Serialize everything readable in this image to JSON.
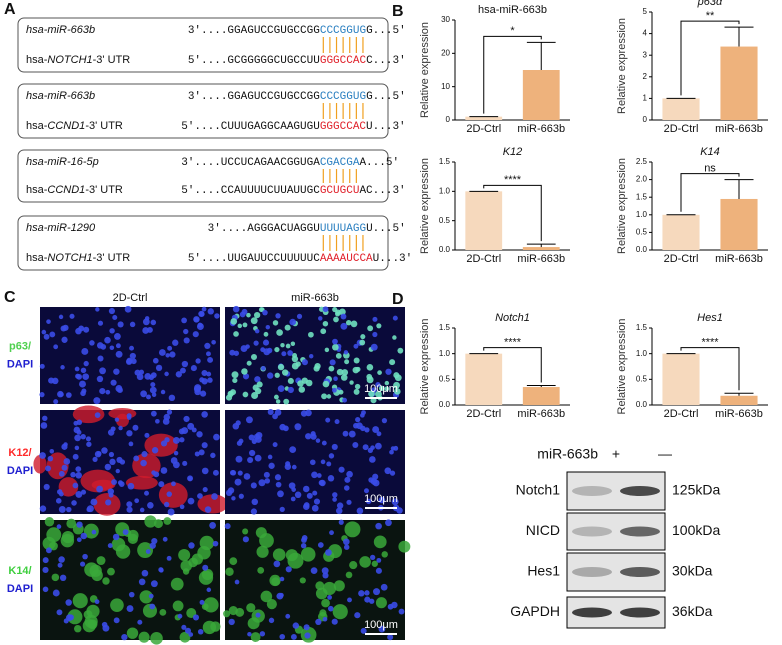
{
  "panels": [
    "A",
    "B",
    "C",
    "D"
  ],
  "targets": [
    {
      "mir": "hsa-miR-663b",
      "mir_seq": [
        "3'....GGAGUCCGUGCCGG",
        "CCCGGUG",
        "G...5'"
      ],
      "target": {
        "pre": "hsa-",
        "gene": "NOTCH1",
        "post": "-3' UTR"
      },
      "target_seq": [
        "5'....GCGGGGGCUGCCUU",
        "GGGCCAC",
        "C...3'"
      ]
    },
    {
      "mir": "hsa-miR-663b",
      "mir_seq": [
        "3'....GGAGUCCGUGCCGG",
        "CCCGGUG",
        "G...5'"
      ],
      "target": {
        "pre": "hsa-",
        "gene": "CCND1",
        "post": "-3' UTR"
      },
      "target_seq": [
        "5'....CUUUGAGGCAAGUGU",
        "GGGCCAC",
        "U...3'"
      ]
    },
    {
      "mir": "hsa-miR-16-5p",
      "mir_seq": [
        "3'....UCCUCAGAACGGUGA",
        "CGACGA",
        "A...5'"
      ],
      "target": {
        "pre": "hsa-",
        "gene": "CCND1",
        "post": "-3' UTR"
      },
      "target_seq": [
        "5'....CCAUUUUCUUAUUGC",
        "GCUGCU",
        "AC...3'"
      ]
    },
    {
      "mir": "hsa-miR-1290",
      "mir_seq": [
        "3'....AGGGACUAGGU",
        "UUUUAGG",
        "U...5'"
      ],
      "target": {
        "pre": "hsa-",
        "gene": "NOTCH1",
        "post": "-3' UTR"
      },
      "target_seq": [
        "5'....UUGAUUCCUUUUUC",
        "AAAAUCCA",
        "U...3'"
      ]
    }
  ],
  "chart_data": [
    {
      "type": "bar",
      "title": "hsa-miR-663b",
      "title_style": "normal",
      "y_label": "Relative expression",
      "categories": [
        "2D-Ctrl",
        "miR-663b"
      ],
      "values": [
        1,
        15
      ],
      "errors": [
        0,
        8.3
      ],
      "colors": [
        "#f6d9bd",
        "#eeb27c"
      ],
      "ylim": [
        0,
        30
      ],
      "yticks": [
        0,
        10,
        20,
        30
      ],
      "significance": "*"
    },
    {
      "type": "bar",
      "title": "p63α",
      "title_style": "italic",
      "y_label": "Relative expression",
      "categories": [
        "2D-Ctrl",
        "miR-663b"
      ],
      "values": [
        1,
        3.4
      ],
      "errors": [
        0,
        0.9
      ],
      "colors": [
        "#f6d9bd",
        "#eeb27c"
      ],
      "ylim": [
        0,
        5
      ],
      "yticks": [
        0,
        1,
        2,
        3,
        4,
        5
      ],
      "significance": "**"
    },
    {
      "type": "bar",
      "title": "K12",
      "title_style": "italic",
      "y_label": "Relative expression",
      "categories": [
        "2D-Ctrl",
        "miR-663b"
      ],
      "values": [
        1,
        0.05
      ],
      "errors": [
        0,
        0.05
      ],
      "colors": [
        "#f6d9bd",
        "#eeb27c"
      ],
      "ylim": [
        0,
        1.5
      ],
      "yticks": [
        {
          "value": 0,
          "label": "0.0"
        },
        0.5,
        {
          "value": 1,
          "label": "1.0"
        },
        1.5
      ],
      "significance": "****"
    },
    {
      "type": "bar",
      "title": "K14",
      "title_style": "italic",
      "y_label": "Relative expression",
      "categories": [
        "2D-Ctrl",
        "miR-663b"
      ],
      "values": [
        1,
        1.45
      ],
      "errors": [
        0,
        0.55
      ],
      "colors": [
        "#f6d9bd",
        "#eeb27c"
      ],
      "ylim": [
        0,
        2.5
      ],
      "yticks": [
        {
          "value": 0,
          "label": "0.0"
        },
        0.5,
        {
          "value": 1,
          "label": "1.0"
        },
        1.5,
        {
          "value": 2,
          "label": "2.0"
        },
        2.5
      ],
      "significance": "ns"
    },
    {
      "type": "bar",
      "title": "Notch1",
      "title_style": "italic",
      "y_label": "Relative expression",
      "categories": [
        "2D-Ctrl",
        "miR-663b"
      ],
      "values": [
        1,
        0.35
      ],
      "errors": [
        0,
        0.03
      ],
      "colors": [
        "#f6d9bd",
        "#eeb27c"
      ],
      "ylim": [
        0,
        1.5
      ],
      "yticks": [
        {
          "value": 0,
          "label": "0.0"
        },
        0.5,
        {
          "value": 1,
          "label": "1.0"
        },
        1.5
      ],
      "significance": "****"
    },
    {
      "type": "bar",
      "title": "Hes1",
      "title_style": "italic",
      "y_label": "Relative expression",
      "categories": [
        "2D-Ctrl",
        "miR-663b"
      ],
      "values": [
        1,
        0.18
      ],
      "errors": [
        0,
        0.05
      ],
      "colors": [
        "#f6d9bd",
        "#eeb27c"
      ],
      "ylim": [
        0,
        1.5
      ],
      "yticks": [
        {
          "value": 0,
          "label": "0.0"
        },
        0.5,
        {
          "value": 1,
          "label": "1.0"
        },
        1.5
      ],
      "significance": "****"
    }
  ],
  "microscopy": {
    "columns": [
      "2D-Ctrl",
      "miR-663b"
    ],
    "rows": [
      {
        "marker": "p63/",
        "counter": "DAPI"
      },
      {
        "marker": "K12/",
        "counter": "DAPI"
      },
      {
        "marker": "K14/",
        "counter": "DAPI"
      }
    ],
    "scale_bar": "100μm"
  },
  "western": {
    "treatment": "miR-663b",
    "lanes": [
      "+",
      "—"
    ],
    "rows": [
      {
        "protein": "Notch1",
        "size": "125kDa"
      },
      {
        "protein": "NICD",
        "size": "100kDa"
      },
      {
        "protein": "Hes1",
        "size": "30kDa"
      },
      {
        "protein": "GAPDH",
        "size": "36kDa"
      }
    ]
  }
}
